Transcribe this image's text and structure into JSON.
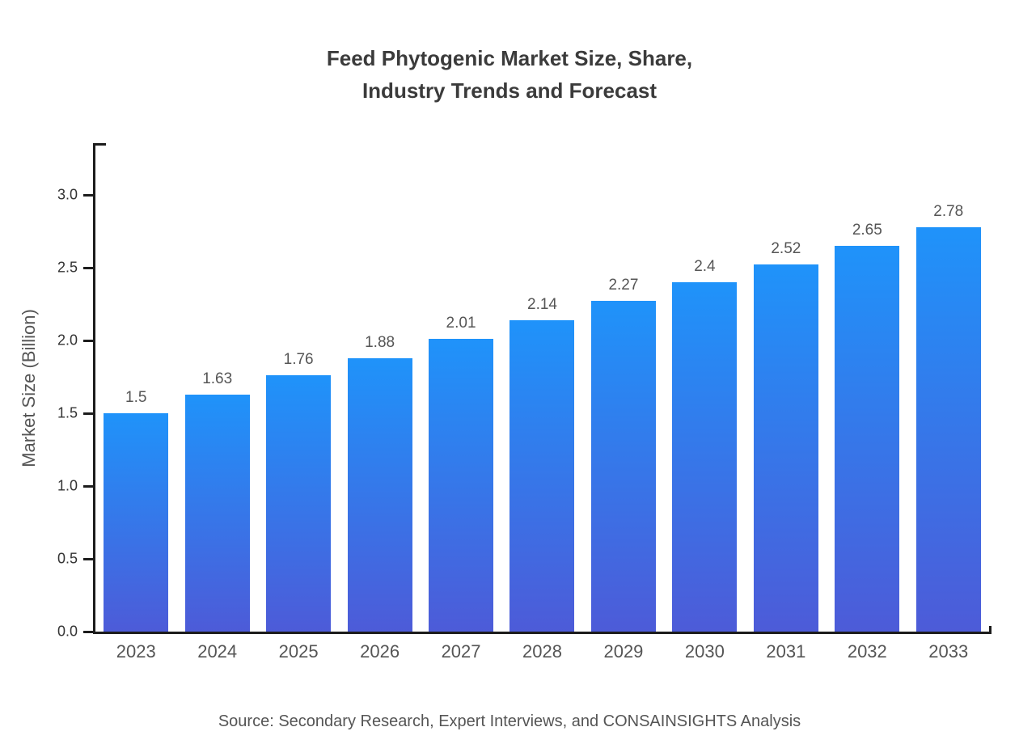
{
  "title": {
    "line1": "Feed Phytogenic Market Size, Share,",
    "line2": "Industry Trends and Forecast"
  },
  "chart_data": {
    "type": "bar",
    "title": "Feed Phytogenic Market Size, Share, Industry Trends and Forecast",
    "categories": [
      "2023",
      "2024",
      "2025",
      "2026",
      "2027",
      "2028",
      "2029",
      "2030",
      "2031",
      "2032",
      "2033"
    ],
    "values": [
      1.5,
      1.63,
      1.76,
      1.88,
      2.01,
      2.14,
      2.27,
      2.4,
      2.52,
      2.65,
      2.78
    ],
    "xlabel": "",
    "ylabel": "Market Size (Billion)",
    "ylim": [
      0,
      3.33
    ],
    "yticks": [
      {
        "value": 0,
        "label": "0.0"
      },
      {
        "value": 0.5,
        "label": "0.5"
      },
      {
        "value": 1,
        "label": "1.0"
      },
      {
        "value": 1.5,
        "label": "1.5"
      },
      {
        "value": 2,
        "label": "2.0"
      },
      {
        "value": 2.5,
        "label": "2.5"
      },
      {
        "value": 3,
        "label": "3.0"
      }
    ],
    "grid": false,
    "legend": null,
    "bar_gradient_top": "#1f93fa",
    "bar_gradient_bottom": "#4d5bd8"
  },
  "source": {
    "text": "Source: Secondary Research, Expert Interviews, and CONSAINSIGHTS Analysis"
  }
}
